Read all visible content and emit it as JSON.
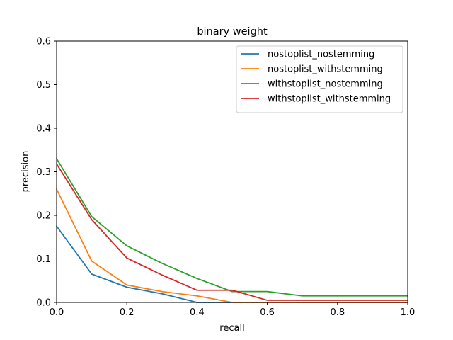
{
  "chart_data": {
    "type": "line",
    "title": "binary weight",
    "xlabel": "recall",
    "ylabel": "precision",
    "xlim": [
      0.0,
      1.0
    ],
    "ylim": [
      0.0,
      0.6
    ],
    "xticks": [
      "0.0",
      "0.2",
      "0.4",
      "0.6",
      "0.8",
      "1.0"
    ],
    "yticks": [
      "0.0",
      "0.1",
      "0.2",
      "0.3",
      "0.4",
      "0.5",
      "0.6"
    ],
    "grid": false,
    "legend_position": "top-right",
    "x": [
      0.0,
      0.1,
      0.2,
      0.3,
      0.4,
      0.5,
      0.6,
      0.7,
      0.8,
      0.9,
      1.0
    ],
    "series": [
      {
        "name": "nostoplist_nostemming",
        "color": "#1f77b4",
        "values": [
          0.175,
          0.065,
          0.035,
          0.02,
          0.0,
          0.0,
          0.0,
          0.0,
          0.0,
          0.0,
          0.0
        ]
      },
      {
        "name": "nostoplist_withstemming",
        "color": "#ff7f0e",
        "values": [
          0.26,
          0.095,
          0.04,
          0.025,
          0.015,
          0.0,
          0.0,
          0.0,
          0.0,
          0.0,
          0.0
        ]
      },
      {
        "name": "withstoplist_nostemming",
        "color": "#2ca02c",
        "values": [
          0.33,
          0.197,
          0.13,
          0.09,
          0.055,
          0.025,
          0.025,
          0.015,
          0.015,
          0.015,
          0.015
        ]
      },
      {
        "name": "withstoplist_withstemming",
        "color": "#d62728",
        "values": [
          0.318,
          0.19,
          0.102,
          0.063,
          0.028,
          0.028,
          0.005,
          0.005,
          0.005,
          0.005,
          0.005
        ]
      }
    ]
  }
}
